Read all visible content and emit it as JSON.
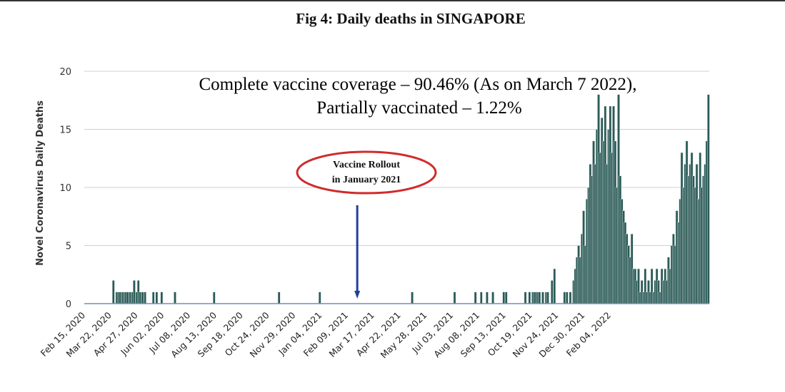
{
  "figure": {
    "title": "Fig 4: Daily deaths in SINGAPORE"
  },
  "chart_data": {
    "type": "bar",
    "title": "Fig 4: Daily deaths in SINGAPORE",
    "xlabel": "",
    "ylabel": "Novel Coronavirus Daily Deaths",
    "ylim": [
      0,
      20
    ],
    "yticks": [
      0,
      5,
      10,
      15,
      20
    ],
    "grid": true,
    "x_tick_labels": [
      "Feb 15, 2020",
      "Mar 22, 2020",
      "Apr 27, 2020",
      "Jun 02, 2020",
      "Jul 08, 2020",
      "Aug 13, 2020",
      "Sep 18, 2020",
      "Oct 24, 2020",
      "Nov 29, 2020",
      "Jan 04, 2021",
      "Feb 09, 2021",
      "Mar 17, 2021",
      "Apr 22, 2021",
      "May 28, 2021",
      "Jul 03, 2021",
      "Aug 08, 2021",
      "Sep 13, 2021",
      "Oct 19, 2021",
      "Nov 24, 2021",
      "Dec 30, 2021",
      "Feb 04, 2022"
    ],
    "first_date": "2020-02-15",
    "last_date": "2022-03-07",
    "bar_color": "#2a5a56",
    "bar_edge_color": "#dfe7e6",
    "axis_color": "#6d8fc4",
    "grid_color": "#cfcfcf",
    "deaths": [
      {
        "date": "2020-03-21",
        "value": 2
      },
      {
        "date": "2020-03-25",
        "value": 1
      },
      {
        "date": "2020-03-27",
        "value": 1
      },
      {
        "date": "2020-03-29",
        "value": 1
      },
      {
        "date": "2020-04-01",
        "value": 1
      },
      {
        "date": "2020-04-03",
        "value": 1
      },
      {
        "date": "2020-04-05",
        "value": 1
      },
      {
        "date": "2020-04-07",
        "value": 1
      },
      {
        "date": "2020-04-10",
        "value": 1
      },
      {
        "date": "2020-04-13",
        "value": 1
      },
      {
        "date": "2020-04-15",
        "value": 2
      },
      {
        "date": "2020-04-18",
        "value": 1
      },
      {
        "date": "2020-04-20",
        "value": 2
      },
      {
        "date": "2020-04-22",
        "value": 1
      },
      {
        "date": "2020-04-25",
        "value": 1
      },
      {
        "date": "2020-04-28",
        "value": 1
      },
      {
        "date": "2020-05-08",
        "value": 1
      },
      {
        "date": "2020-05-12",
        "value": 1
      },
      {
        "date": "2020-05-18",
        "value": 1
      },
      {
        "date": "2020-06-03",
        "value": 1
      },
      {
        "date": "2020-07-20",
        "value": 1
      },
      {
        "date": "2020-10-06",
        "value": 1
      },
      {
        "date": "2020-11-24",
        "value": 1
      },
      {
        "date": "2021-03-15",
        "value": 1
      },
      {
        "date": "2021-05-05",
        "value": 1
      },
      {
        "date": "2021-05-30",
        "value": 1
      },
      {
        "date": "2021-06-06",
        "value": 1
      },
      {
        "date": "2021-06-13",
        "value": 1
      },
      {
        "date": "2021-06-20",
        "value": 1
      },
      {
        "date": "2021-07-03",
        "value": 1
      },
      {
        "date": "2021-07-06",
        "value": 1
      },
      {
        "date": "2021-07-29",
        "value": 1
      },
      {
        "date": "2021-08-03",
        "value": 1
      },
      {
        "date": "2021-08-07",
        "value": 1
      },
      {
        "date": "2021-08-09",
        "value": 1
      },
      {
        "date": "2021-08-11",
        "value": 1
      },
      {
        "date": "2021-08-13",
        "value": 1
      },
      {
        "date": "2021-08-15",
        "value": 1
      },
      {
        "date": "2021-08-19",
        "value": 1
      },
      {
        "date": "2021-08-23",
        "value": 1
      },
      {
        "date": "2021-08-25",
        "value": 1
      },
      {
        "date": "2021-08-30",
        "value": 2
      },
      {
        "date": "2021-09-02",
        "value": 3
      },
      {
        "date": "2021-09-14",
        "value": 1
      },
      {
        "date": "2021-09-17",
        "value": 1
      },
      {
        "date": "2021-09-21",
        "value": 1
      },
      {
        "date": "2021-09-25",
        "value": 2
      },
      {
        "date": "2021-09-27",
        "value": 3
      },
      {
        "date": "2021-09-29",
        "value": 4
      },
      {
        "date": "2021-10-01",
        "value": 5
      },
      {
        "date": "2021-10-03",
        "value": 4
      },
      {
        "date": "2021-10-05",
        "value": 6
      },
      {
        "date": "2021-10-07",
        "value": 8
      },
      {
        "date": "2021-10-09",
        "value": 5
      },
      {
        "date": "2021-10-11",
        "value": 9
      },
      {
        "date": "2021-10-13",
        "value": 10
      },
      {
        "date": "2021-10-15",
        "value": 12
      },
      {
        "date": "2021-10-17",
        "value": 11
      },
      {
        "date": "2021-10-19",
        "value": 14
      },
      {
        "date": "2021-10-21",
        "value": 12
      },
      {
        "date": "2021-10-23",
        "value": 15
      },
      {
        "date": "2021-10-25",
        "value": 18
      },
      {
        "date": "2021-10-27",
        "value": 13
      },
      {
        "date": "2021-10-29",
        "value": 16
      },
      {
        "date": "2021-10-31",
        "value": 14
      },
      {
        "date": "2021-11-02",
        "value": 17
      },
      {
        "date": "2021-11-04",
        "value": 12
      },
      {
        "date": "2021-11-06",
        "value": 15
      },
      {
        "date": "2021-11-08",
        "value": 17
      },
      {
        "date": "2021-11-10",
        "value": 13
      },
      {
        "date": "2021-11-12",
        "value": 17
      },
      {
        "date": "2021-11-14",
        "value": 14
      },
      {
        "date": "2021-11-16",
        "value": 10
      },
      {
        "date": "2021-11-18",
        "value": 18
      },
      {
        "date": "2021-11-20",
        "value": 11
      },
      {
        "date": "2021-11-22",
        "value": 9
      },
      {
        "date": "2021-11-24",
        "value": 8
      },
      {
        "date": "2021-11-26",
        "value": 7
      },
      {
        "date": "2021-11-28",
        "value": 6
      },
      {
        "date": "2021-11-30",
        "value": 5
      },
      {
        "date": "2021-12-02",
        "value": 4
      },
      {
        "date": "2021-12-04",
        "value": 6
      },
      {
        "date": "2021-12-06",
        "value": 3
      },
      {
        "date": "2021-12-08",
        "value": 3
      },
      {
        "date": "2021-12-10",
        "value": 2
      },
      {
        "date": "2021-12-12",
        "value": 3
      },
      {
        "date": "2021-12-14",
        "value": 1
      },
      {
        "date": "2021-12-16",
        "value": 2
      },
      {
        "date": "2021-12-18",
        "value": 1
      },
      {
        "date": "2021-12-20",
        "value": 3
      },
      {
        "date": "2021-12-22",
        "value": 1
      },
      {
        "date": "2021-12-24",
        "value": 2
      },
      {
        "date": "2021-12-26",
        "value": 1
      },
      {
        "date": "2021-12-28",
        "value": 3
      },
      {
        "date": "2021-12-30",
        "value": 1
      },
      {
        "date": "2022-01-01",
        "value": 2
      },
      {
        "date": "2022-01-03",
        "value": 3
      },
      {
        "date": "2022-01-05",
        "value": 2
      },
      {
        "date": "2022-01-07",
        "value": 1
      },
      {
        "date": "2022-01-09",
        "value": 3
      },
      {
        "date": "2022-01-11",
        "value": 2
      },
      {
        "date": "2022-01-13",
        "value": 3
      },
      {
        "date": "2022-01-15",
        "value": 2
      },
      {
        "date": "2022-01-17",
        "value": 4
      },
      {
        "date": "2022-01-19",
        "value": 3
      },
      {
        "date": "2022-01-21",
        "value": 5
      },
      {
        "date": "2022-01-23",
        "value": 6
      },
      {
        "date": "2022-01-25",
        "value": 5
      },
      {
        "date": "2022-01-27",
        "value": 8
      },
      {
        "date": "2022-01-29",
        "value": 7
      },
      {
        "date": "2022-01-31",
        "value": 9
      },
      {
        "date": "2022-02-02",
        "value": 13
      },
      {
        "date": "2022-02-04",
        "value": 10
      },
      {
        "date": "2022-02-06",
        "value": 12
      },
      {
        "date": "2022-02-08",
        "value": 14
      },
      {
        "date": "2022-02-10",
        "value": 11
      },
      {
        "date": "2022-02-12",
        "value": 12
      },
      {
        "date": "2022-02-14",
        "value": 13
      },
      {
        "date": "2022-02-16",
        "value": 11
      },
      {
        "date": "2022-02-18",
        "value": 10
      },
      {
        "date": "2022-02-20",
        "value": 12
      },
      {
        "date": "2022-02-22",
        "value": 9
      },
      {
        "date": "2022-02-24",
        "value": 13
      },
      {
        "date": "2022-02-26",
        "value": 10
      },
      {
        "date": "2022-02-28",
        "value": 11
      },
      {
        "date": "2022-03-02",
        "value": 12
      },
      {
        "date": "2022-03-04",
        "value": 14
      },
      {
        "date": "2022-03-06",
        "value": 18
      }
    ],
    "annotations": {
      "coverage_line1": "Complete vaccine coverage – 90.46% (As on March 7 2022),",
      "coverage_line2": "Partially vaccinated – 1.22%",
      "rollout_line1": "Vaccine Rollout",
      "rollout_line2": "in January 2021",
      "rollout_date": "2021-01-08",
      "ellipse_color": "#d02b2b",
      "arrow_color": "#1f3f9a"
    }
  }
}
